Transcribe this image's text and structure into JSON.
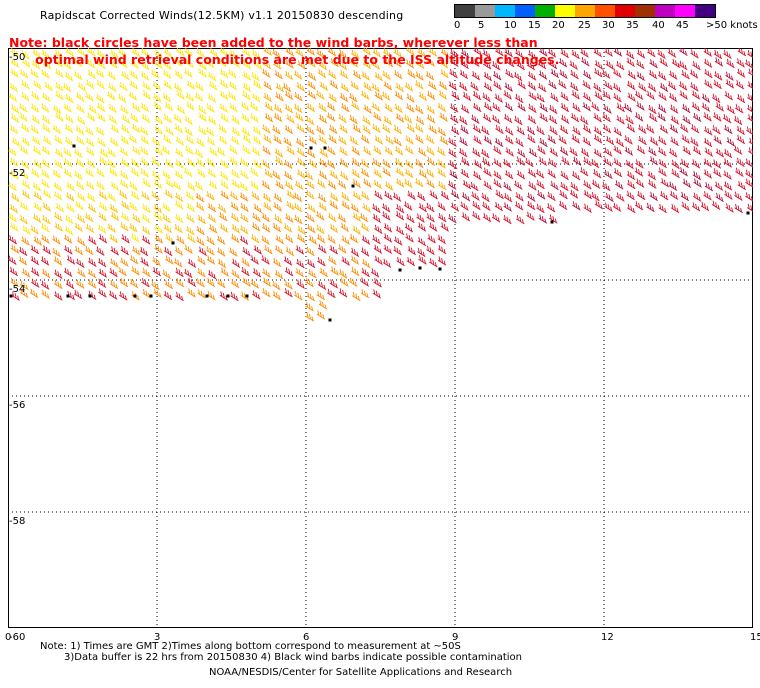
{
  "title": "Rapidscat Corrected Winds(12.5KM) v1.1 20150830 descending",
  "note_line1": "Note: black circles have been added to the wind barbs, wherever less than",
  "note_line2": "optimal wind retrieval conditions are met due to the ISS altitude changes.",
  "legend": {
    "labels": [
      "0",
      "5",
      "10",
      "15",
      "20",
      "25",
      "30",
      "35",
      "40",
      "45",
      ">50 knots"
    ],
    "colors": [
      "#404040",
      "#9a9a9a",
      "#00b8ff",
      "#0060ff",
      "#00b000",
      "#ffff00",
      "#ffa500",
      "#ff5000",
      "#e00000",
      "#a03000",
      "#c000c0",
      "#ff00ff",
      "#400080"
    ]
  },
  "map": {
    "x_ticks": [
      "0",
      "3",
      "6",
      "9",
      "12",
      "15"
    ],
    "y_ticks": [
      "-50",
      "-52",
      "-54",
      "-56",
      "-58",
      "-60"
    ],
    "lon_range": [
      0,
      15
    ],
    "lat_range": [
      -50,
      -60
    ],
    "colors": {
      "weak": "#ffe600",
      "mid": "#ff8c00",
      "strong": "#d8102a",
      "contaminated": "#000000"
    }
  },
  "footer": {
    "line1": "Note: 1) Times are GMT 2)Times along bottom correspond to measurement at ~50S",
    "line2": "3)Data buffer is 22 hrs from 20150830 4) Black wind barbs indicate possible contamination",
    "line3": "NOAA/NESDIS/Center for Satellite Applications and Research"
  }
}
